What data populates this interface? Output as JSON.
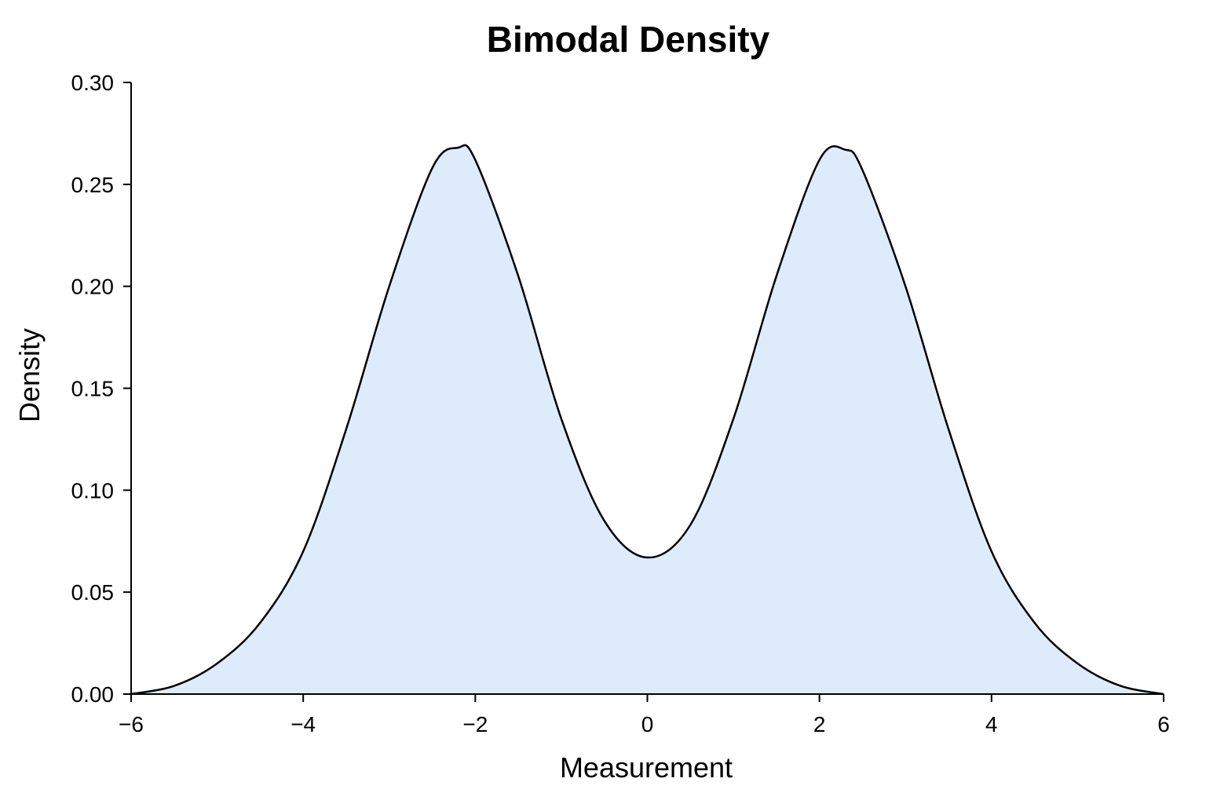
{
  "chart_data": {
    "type": "area",
    "title": "Bimodal Density",
    "xlabel": "Measurement",
    "ylabel": "Density",
    "xlim": [
      -6,
      6
    ],
    "ylim": [
      0,
      0.3
    ],
    "x_ticks": [
      -6,
      -4,
      -2,
      0,
      2,
      4,
      6
    ],
    "x_tick_labels": [
      "−6",
      "−4",
      "−2",
      "0",
      "2",
      "4",
      "6"
    ],
    "y_ticks": [
      0,
      0.05,
      0.1,
      0.15,
      0.2,
      0.25,
      0.3
    ],
    "y_tick_labels": [
      "0.00",
      "0.05",
      "0.10",
      "0.15",
      "0.20",
      "0.25",
      "0.30"
    ],
    "grid": false,
    "legend": "none",
    "fill_color": "#deebfb",
    "line_color": "#000000",
    "series": [
      {
        "x": [
          -6.0,
          -5.5,
          -5.0,
          -4.5,
          -4.0,
          -3.5,
          -3.0,
          -2.5,
          -2.2,
          -2.0,
          -1.5,
          -1.0,
          -0.5,
          0.0,
          0.5,
          1.0,
          1.5,
          2.0,
          2.3,
          2.5,
          3.0,
          3.5,
          4.0,
          4.5,
          5.0,
          5.5,
          6.0
        ],
        "values": [
          0.0,
          0.004,
          0.015,
          0.035,
          0.07,
          0.13,
          0.2,
          0.258,
          0.268,
          0.262,
          0.205,
          0.135,
          0.085,
          0.067,
          0.083,
          0.135,
          0.205,
          0.262,
          0.267,
          0.257,
          0.2,
          0.13,
          0.07,
          0.035,
          0.015,
          0.004,
          0.0
        ]
      }
    ]
  }
}
